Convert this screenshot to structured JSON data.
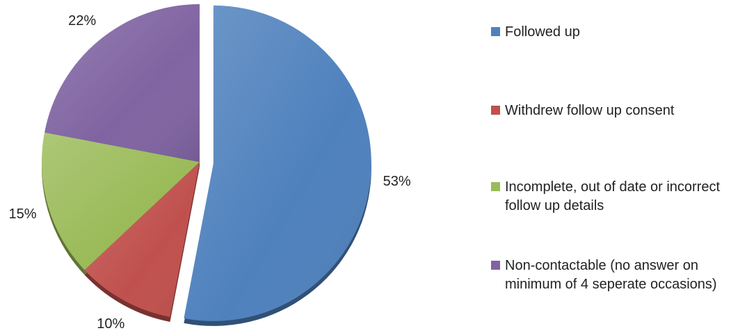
{
  "chart_data": {
    "type": "pie",
    "categories": [
      "Followed up",
      "Withdrew follow up consent",
      "Incomplete, out of date or incorrect follow up details",
      "Non-contactable (no answer on minimum of 4 seperate occasions)"
    ],
    "values": [
      53,
      10,
      15,
      22
    ],
    "value_labels": [
      "53%",
      "10%",
      "15%",
      "22%"
    ],
    "colors": [
      "#4F81BD",
      "#C0504D",
      "#9BBB59",
      "#8064A2"
    ],
    "exploded": [
      true,
      false,
      false,
      false
    ],
    "legend_position": "right",
    "start_angle_deg": 0,
    "direction": "clockwise"
  },
  "legend": {
    "items": [
      {
        "label": "Followed up",
        "color": "#4F81BD"
      },
      {
        "label": "Withdrew follow up consent",
        "color": "#C0504D"
      },
      {
        "label": "Incomplete, out of date or incorrect follow up details",
        "color": "#9BBB59"
      },
      {
        "label": "Non-contactable (no answer on minimum of 4 seperate occasions)",
        "color": "#8064A2"
      }
    ]
  }
}
